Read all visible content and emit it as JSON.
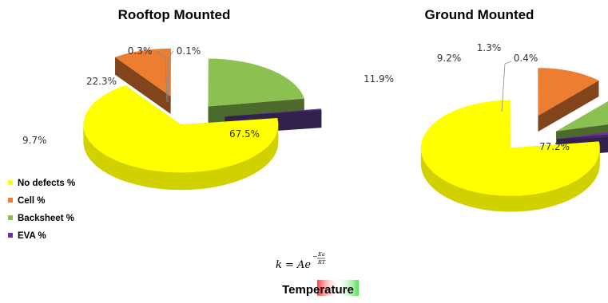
{
  "chart_data": [
    {
      "type": "pie",
      "title": "Rooftop Mounted",
      "categories": [
        "No defects %",
        "Cell %",
        "Backsheet %",
        "EVA %"
      ],
      "slices": [
        {
          "name": "No defects %",
          "value": 67.5,
          "label": "67.5%"
        },
        {
          "name": "Cell %",
          "value": 9.7,
          "label": "9.7%"
        },
        {
          "name": "Backsheet %",
          "value": 22.3,
          "label": "22.3%"
        },
        {
          "name": "EVA %",
          "value": 0.3,
          "label": "0.3%"
        },
        {
          "name": "",
          "value": 0.1,
          "label": "0.1%"
        }
      ]
    },
    {
      "type": "pie",
      "title": "Ground Mounted",
      "categories": [
        "No defects %",
        "Cell %",
        "Backsheet %",
        "EVA %"
      ],
      "slices": [
        {
          "name": "No defects %",
          "value": 77.2,
          "label": "77.2%"
        },
        {
          "name": "Cell %",
          "value": 11.9,
          "label": "11.9%"
        },
        {
          "name": "Backsheet %",
          "value": 9.2,
          "label": "9.2%"
        },
        {
          "name": "EVA %",
          "value": 1.3,
          "label": "1.3%"
        },
        {
          "name": "",
          "value": 0.4,
          "label": "0.4%"
        }
      ]
    }
  ],
  "legend": {
    "items": [
      {
        "label": "No defects %",
        "color": "#ffff00"
      },
      {
        "label": "Cell %",
        "color": "#ed7d31"
      },
      {
        "label": "Backsheet %",
        "color": "#8cc152"
      },
      {
        "label": "EVA %",
        "color": "#7030a0"
      }
    ]
  },
  "formula": {
    "lhs": "k = Ae",
    "exp_num": "Ea",
    "exp_den": "RT"
  },
  "temperature_label": "Temperature",
  "colors": {
    "no_defects": "#ffff00",
    "cell": "#ed7d31",
    "backsheet": "#8cc152",
    "eva": "#7030a0",
    "eva_small": "#5b3a8c"
  }
}
